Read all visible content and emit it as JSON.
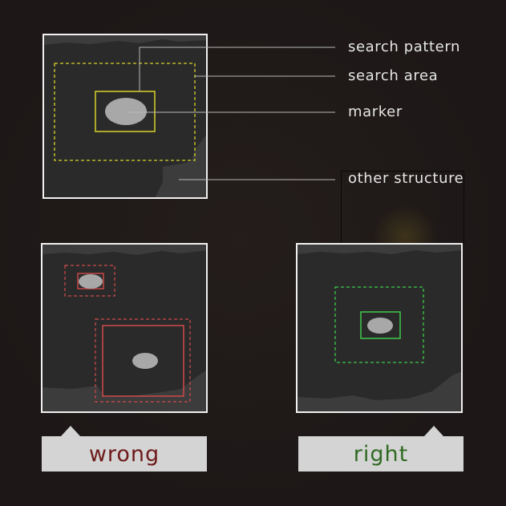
{
  "labels": {
    "search_pattern": "search pattern",
    "search_area": "search area",
    "marker": "marker",
    "other_structure": "other structure"
  },
  "tags": {
    "wrong": "wrong",
    "right": "right"
  },
  "colors": {
    "background": "#1d1817",
    "panel_border": "#f0f0f0",
    "panel_fill": "#2a2a2a",
    "structure_fill": "#3c3c3c",
    "marker_fill": "#a8a8a8",
    "yellow_box": "#d6d22a",
    "red_box": "#d24a4a",
    "green_box": "#3ec94a",
    "leader_line": "#b8b8b8",
    "wrong_text": "#6e1a1a",
    "right_text": "#2f6b22",
    "tag_fill": "#d4d4d4"
  }
}
